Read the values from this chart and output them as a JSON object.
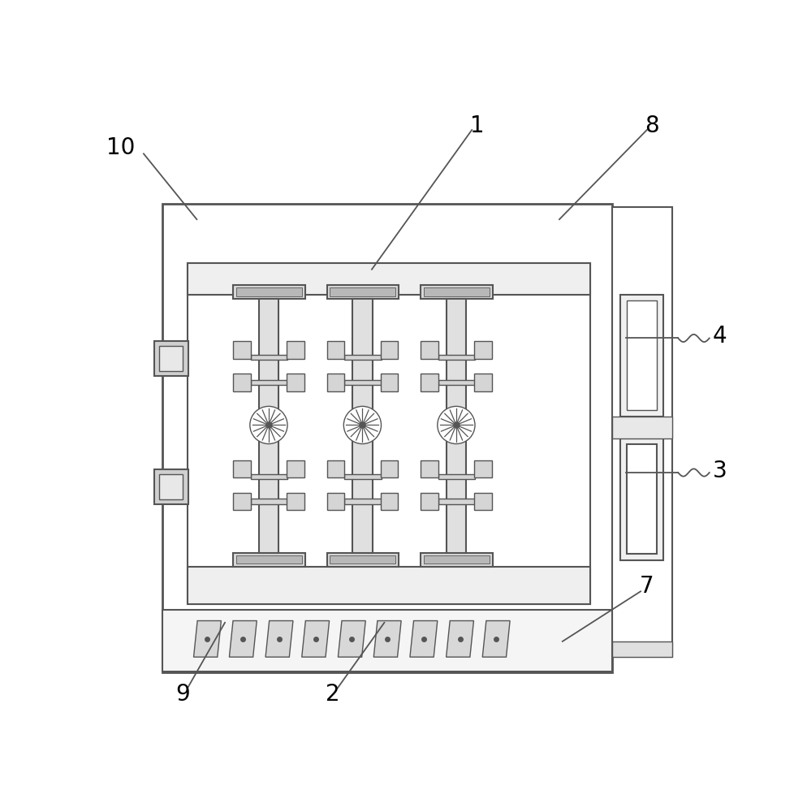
{
  "bg_color": "#ffffff",
  "line_color": "#555555",
  "lw_main": 2.0,
  "lw_mid": 1.5,
  "lw_thin": 1.0,
  "label_fontsize": 20
}
